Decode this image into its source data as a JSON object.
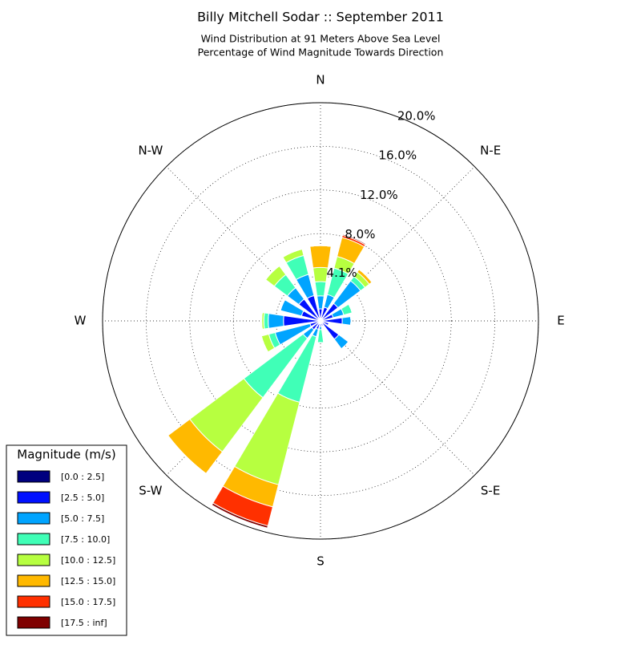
{
  "chart_data": {
    "type": "windrose",
    "title": "Billy Mitchell Sodar :: September 2011",
    "subtitle": [
      "Wind Distribution at 91 Meters Above Sea Level",
      "Percentage of Wind Magnitude Towards Direction"
    ],
    "categories": [
      "N",
      null,
      "N-E",
      null,
      "E",
      null,
      "S-E",
      null,
      "S",
      null,
      "S-W",
      null,
      "W",
      null,
      "N-W",
      null
    ],
    "rlim": [
      0,
      20
    ],
    "rticks": [
      {
        "value": 4.1,
        "label": "4.1%"
      },
      {
        "value": 8,
        "label": "8.0%"
      },
      {
        "value": 12,
        "label": "12.0%"
      },
      {
        "value": 16,
        "label": "16.0%"
      },
      {
        "value": 20,
        "label": "20.0%"
      }
    ],
    "grid": true,
    "legend_title": "Magnitude (m/s)",
    "legend_position": "lower-left",
    "series": [
      {
        "name": "[0.0 : 2.5]",
        "color": "#00007f",
        "values": [
          0.2,
          0.2,
          0.2,
          0.2,
          0.2,
          0.2,
          0.2,
          0.2,
          0.2,
          0.3,
          0.2,
          0.2,
          0.2,
          0.2,
          0.2,
          0.2
        ]
      },
      {
        "name": "[2.5 : 5.0]",
        "color": "#0010ff",
        "values": [
          0.9,
          1.1,
          1.8,
          1.0,
          1.8,
          0.6,
          1.9,
          0.3,
          0.3,
          0.5,
          0.8,
          0.8,
          3.2,
          1.6,
          2.3,
          2.2
        ]
      },
      {
        "name": "[5.0 : 7.5]",
        "color": "#00a4ff",
        "values": [
          1.2,
          1.2,
          2.6,
          1.0,
          0.8,
          0,
          1.1,
          0,
          0.3,
          0.7,
          1.0,
          3.3,
          1.4,
          2.0,
          1.3,
          2.0
        ]
      },
      {
        "name": "[7.5 : 10.0]",
        "color": "#40ffb7",
        "values": [
          1.3,
          2.5,
          0.5,
          0.8,
          0,
          0,
          0,
          0,
          1.2,
          6.2,
          6.8,
          0.6,
          0.4,
          0,
          1.5,
          1.8
        ]
      },
      {
        "name": "[10.0 : 12.5]",
        "color": "#b7ff40",
        "values": [
          1.3,
          1.1,
          0.5,
          0,
          0,
          0,
          0,
          0,
          0,
          7.8,
          6.2,
          0.7,
          0.2,
          0,
          1.0,
          0.6
        ]
      },
      {
        "name": "[12.5 : 15.0]",
        "color": "#ffb900",
        "values": [
          2.0,
          1.8,
          0.3,
          0,
          0,
          0,
          0,
          0,
          0,
          2.1,
          2.5,
          0,
          0,
          0,
          0,
          0
        ]
      },
      {
        "name": "[15.0 : 17.5]",
        "color": "#ff3000",
        "values": [
          0,
          0.2,
          0,
          0,
          0,
          0,
          0,
          0,
          0,
          1.8,
          0,
          0,
          0,
          0,
          0,
          0
        ]
      },
      {
        "name": "[17.5 : inf]",
        "color": "#7f0000",
        "values": [
          0,
          0.1,
          0,
          0,
          0,
          0,
          0,
          0,
          0,
          0.2,
          0,
          0,
          0,
          0,
          0,
          0
        ]
      }
    ]
  }
}
